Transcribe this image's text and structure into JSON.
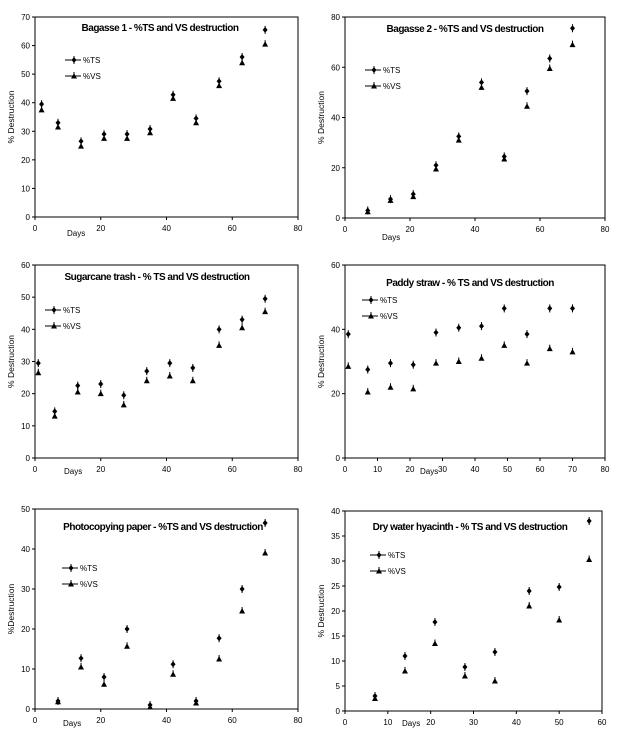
{
  "chart_data": [
    {
      "type": "scatter",
      "title": "Bagasse 1 - %TS and VS destruction",
      "xlabel": "Days",
      "ylabel": "% Destruction",
      "xlim": [
        0,
        80
      ],
      "xticks": [
        0,
        20,
        40,
        60,
        80
      ],
      "ylim": [
        0,
        70
      ],
      "yticks": [
        0,
        10,
        20,
        30,
        40,
        50,
        60,
        70
      ],
      "grid": false,
      "legend": "upper-left",
      "x": [
        2,
        7,
        14,
        21,
        28,
        35,
        42,
        49,
        56,
        63,
        70
      ],
      "series": [
        {
          "name": "%TS",
          "marker": "diamond",
          "values": [
            39.5,
            33,
            26.5,
            29,
            29,
            30.8,
            42.8,
            34.5,
            47.5,
            56,
            65.5
          ]
        },
        {
          "name": "%VS",
          "marker": "triangle",
          "values": [
            37.5,
            31.5,
            24.8,
            27.5,
            27.5,
            29.5,
            41.5,
            33,
            46,
            54,
            60.5
          ]
        }
      ]
    },
    {
      "type": "scatter",
      "title": "Bagasse 2 - %TS and VS destruction",
      "xlabel": "Days",
      "ylabel": "% Destruction",
      "xlim": [
        0,
        80
      ],
      "xticks": [
        0,
        20,
        40,
        60,
        80
      ],
      "ylim": [
        0,
        80
      ],
      "yticks": [
        0,
        20,
        40,
        60,
        80
      ],
      "grid": false,
      "legend": "upper-left",
      "x": [
        7,
        14,
        21,
        28,
        35,
        42,
        49,
        56,
        63,
        70
      ],
      "series": [
        {
          "name": "%TS",
          "marker": "diamond",
          "values": [
            3,
            7.5,
            9.5,
            21,
            32.5,
            54,
            24.5,
            50.5,
            63.5,
            75.5
          ]
        },
        {
          "name": "%VS",
          "marker": "triangle",
          "values": [
            2.5,
            7,
            8.5,
            19.5,
            31,
            52,
            23.5,
            44.5,
            59.5,
            69
          ]
        }
      ]
    },
    {
      "type": "scatter",
      "title": "Sugarcane trash - % TS and VS destruction",
      "xlabel": "Days",
      "ylabel": "% Destruction",
      "xlim": [
        0,
        80
      ],
      "xticks": [
        0,
        20,
        40,
        60,
        80
      ],
      "ylim": [
        0,
        60
      ],
      "yticks": [
        0,
        10,
        20,
        30,
        40,
        50,
        60
      ],
      "grid": false,
      "legend": "upper-left",
      "x": [
        1,
        6,
        13,
        20,
        27,
        34,
        41,
        48,
        56,
        63,
        70
      ],
      "series": [
        {
          "name": "%TS",
          "marker": "diamond",
          "values": [
            29.5,
            14.5,
            22.5,
            23,
            19.5,
            27,
            29.5,
            28,
            40,
            43,
            49.5
          ]
        },
        {
          "name": "%VS",
          "marker": "triangle",
          "values": [
            26.5,
            13,
            20.5,
            20,
            16.5,
            24,
            25.5,
            24,
            35,
            40.5,
            45.5
          ]
        }
      ]
    },
    {
      "type": "scatter",
      "title": "Paddy straw - % TS and VS destruction",
      "xlabel": "Days",
      "ylabel": "% Destruction",
      "xlim": [
        0,
        80
      ],
      "xticks": [
        0,
        10,
        20,
        30,
        40,
        50,
        60,
        70,
        80
      ],
      "ylim": [
        0,
        60
      ],
      "yticks": [
        0,
        20,
        40,
        60
      ],
      "grid": false,
      "legend": "upper-left",
      "x": [
        1,
        7,
        14,
        21,
        28,
        35,
        42,
        49,
        56,
        63,
        70
      ],
      "series": [
        {
          "name": "%TS",
          "marker": "diamond",
          "values": [
            38.5,
            27.5,
            29.5,
            29,
            39,
            40.5,
            41,
            46.5,
            38.5,
            46.5,
            46.5
          ]
        },
        {
          "name": "%VS",
          "marker": "triangle",
          "values": [
            28.5,
            20.5,
            22,
            21.5,
            29.5,
            30,
            31,
            35,
            29.5,
            34,
            33
          ]
        }
      ]
    },
    {
      "type": "scatter",
      "title": "Photocopying paper - %TS and VS destruction",
      "xlabel": "Days",
      "ylabel": "%Destruction",
      "xlim": [
        0,
        80
      ],
      "xticks": [
        0,
        20,
        40,
        60,
        80
      ],
      "ylim": [
        0,
        50
      ],
      "yticks": [
        0,
        10,
        20,
        30,
        40,
        50
      ],
      "grid": false,
      "legend": "upper-left",
      "x": [
        7,
        14,
        21,
        28,
        35,
        42,
        49,
        56,
        63,
        70
      ],
      "series": [
        {
          "name": "%TS",
          "marker": "diamond",
          "values": [
            2,
            12.7,
            8,
            20,
            1,
            11.2,
            2,
            17.7,
            30,
            46.5
          ]
        },
        {
          "name": "%VS",
          "marker": "triangle",
          "values": [
            1.8,
            10.5,
            6.2,
            15.7,
            0.5,
            8.7,
            1.5,
            12.5,
            24.5,
            39
          ]
        }
      ]
    },
    {
      "type": "scatter",
      "title": "Dry water hyacinth - % TS and VS destruction",
      "xlabel": "Days",
      "ylabel": "% Destruction",
      "xlim": [
        0,
        60
      ],
      "xticks": [
        0,
        10,
        20,
        30,
        40,
        50,
        60
      ],
      "ylim": [
        0,
        40
      ],
      "yticks": [
        0,
        5,
        10,
        15,
        20,
        25,
        30,
        35,
        40
      ],
      "grid": false,
      "legend": "upper-left",
      "x": [
        7,
        14,
        21,
        28,
        35,
        43,
        50,
        57
      ],
      "series": [
        {
          "name": "%TS",
          "marker": "diamond",
          "values": [
            3,
            11,
            17.8,
            8.8,
            11.8,
            24,
            24.8,
            38
          ]
        },
        {
          "name": "%VS",
          "marker": "triangle",
          "values": [
            2.5,
            8,
            13.5,
            7,
            6,
            21,
            18.2,
            30.3
          ]
        }
      ]
    }
  ]
}
